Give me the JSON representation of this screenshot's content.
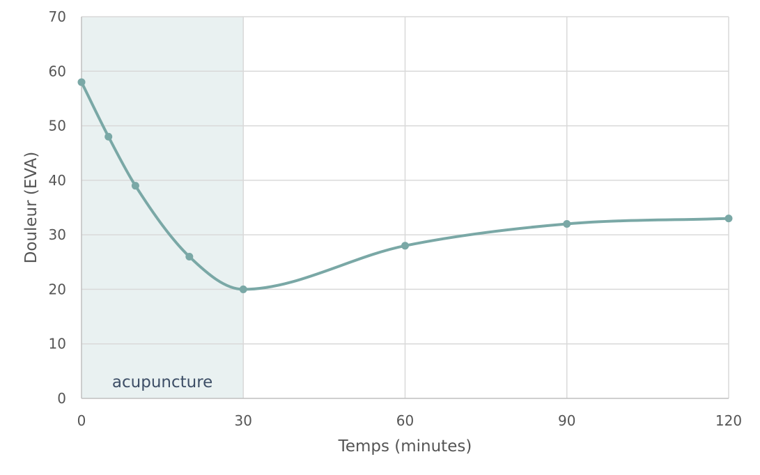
{
  "chart_data": {
    "type": "line",
    "title": "",
    "xlabel": "Temps (minutes)",
    "ylabel": "Douleur (EVA)",
    "xlim": [
      0,
      120
    ],
    "ylim": [
      0,
      70
    ],
    "x_ticks": [
      0,
      30,
      60,
      90,
      120
    ],
    "y_ticks": [
      0,
      10,
      20,
      30,
      40,
      50,
      60,
      70
    ],
    "grid": true,
    "legend": "none",
    "smooth": true,
    "series": [
      {
        "x": [
          0,
          5,
          10,
          20,
          30,
          60,
          90,
          120
        ],
        "y": [
          58,
          48,
          39,
          26,
          20,
          28,
          32,
          33
        ]
      }
    ],
    "annotations": [
      {
        "type": "shaded-region",
        "label": "acupuncture",
        "x_start": 0,
        "x_end": 30
      }
    ]
  },
  "colors": {
    "series": "#7aa8a6",
    "shade": "#e9f1f1",
    "grid": "#d9d9d9",
    "axis": "#bfbfbf",
    "text": "#555555",
    "annotation_text": "#3d4e66"
  }
}
